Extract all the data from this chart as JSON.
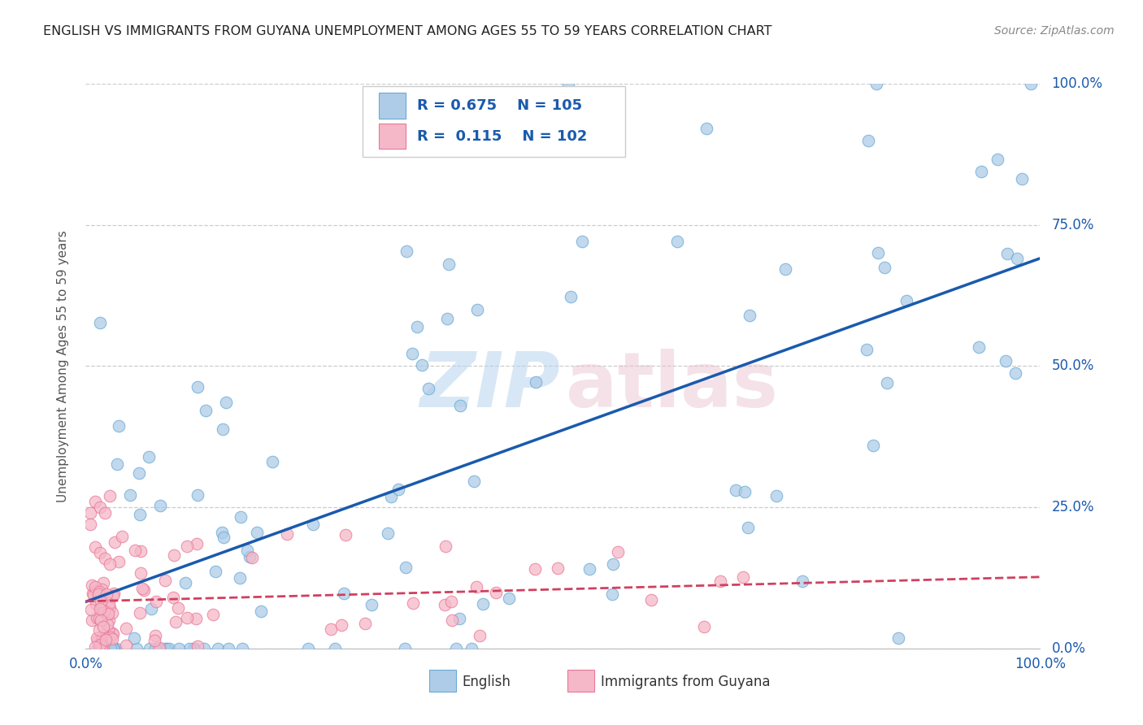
{
  "title": "ENGLISH VS IMMIGRANTS FROM GUYANA UNEMPLOYMENT AMONG AGES 55 TO 59 YEARS CORRELATION CHART",
  "source": "Source: ZipAtlas.com",
  "ylabel": "Unemployment Among Ages 55 to 59 years",
  "xlim": [
    0,
    1
  ],
  "ylim": [
    0,
    1
  ],
  "english_color": "#aecce8",
  "english_edge_color": "#6aaad4",
  "guyana_color": "#f5b8c8",
  "guyana_edge_color": "#e87898",
  "english_R": 0.675,
  "english_N": 105,
  "guyana_R": 0.115,
  "guyana_N": 102,
  "trend_english_color": "#1a5aad",
  "trend_guyana_color": "#d04060",
  "background_color": "#ffffff",
  "grid_color": "#cccccc",
  "english_seed": 12,
  "guyana_seed": 7
}
